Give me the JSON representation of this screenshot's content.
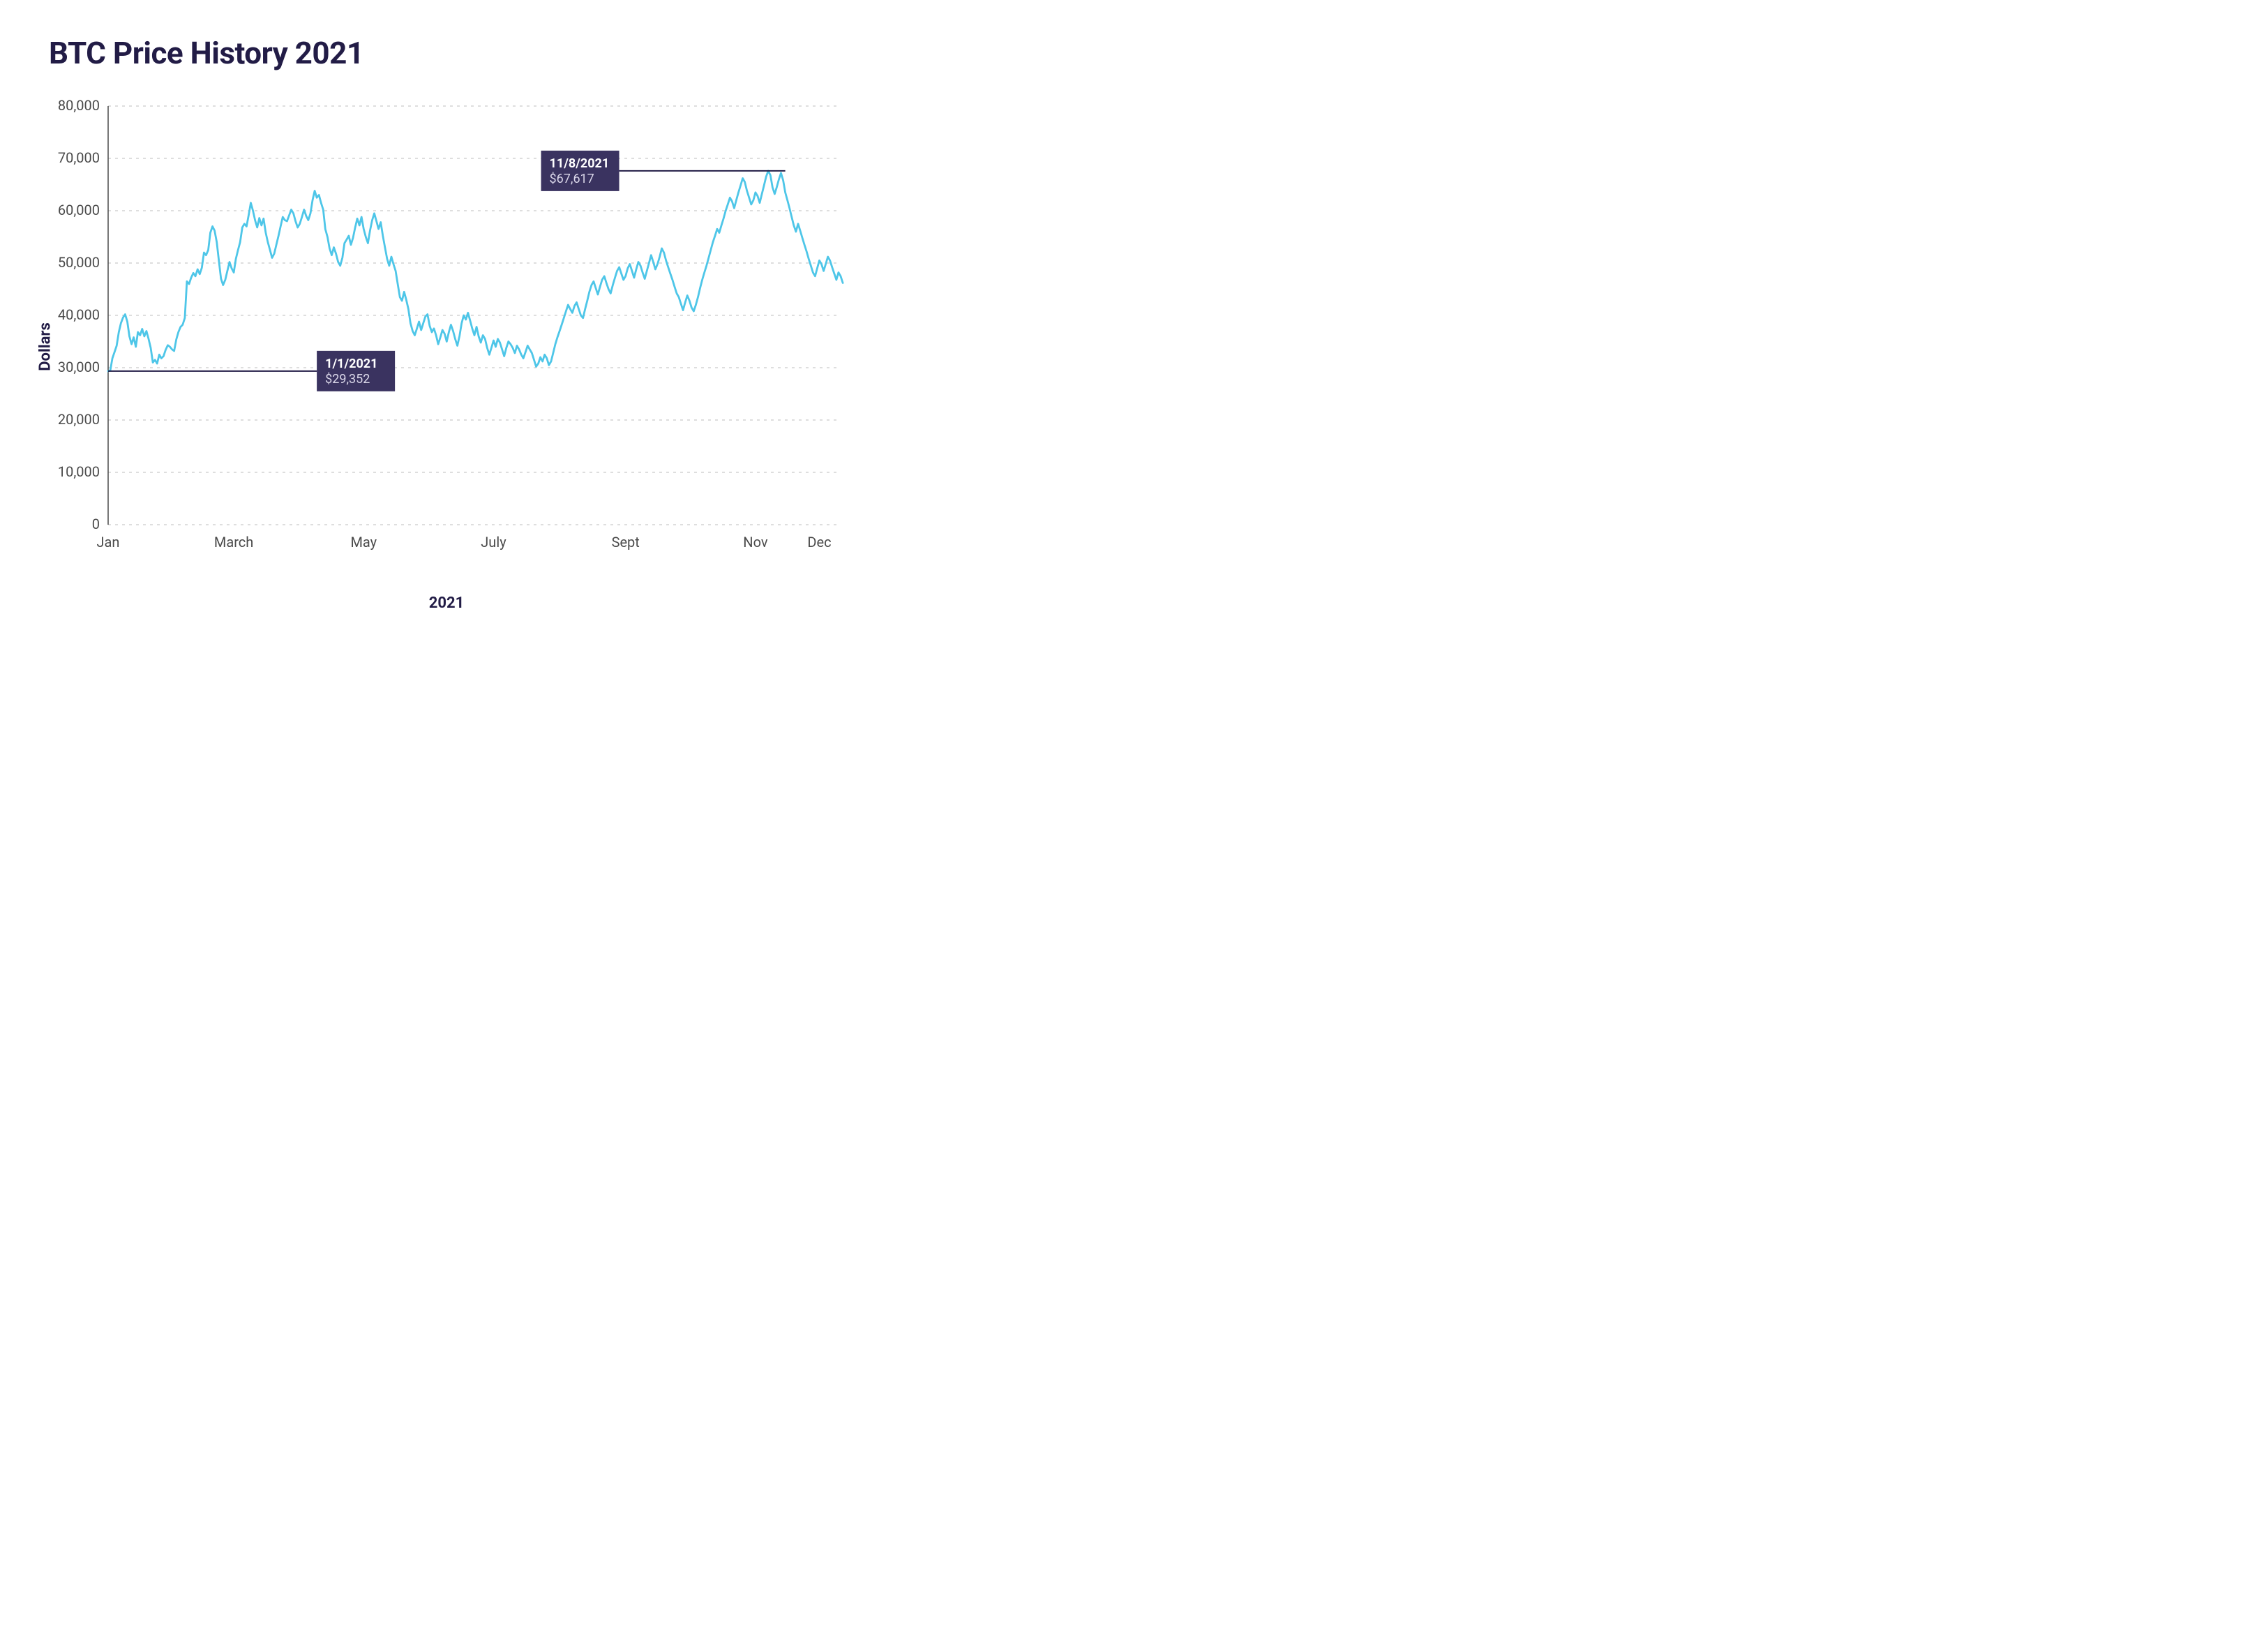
{
  "title": "BTC Price History 2021",
  "chart": {
    "type": "line",
    "ylabel": "Dollars",
    "xlabel": "2021",
    "ylim": [
      0,
      80000
    ],
    "ytick_step": 10000,
    "ytick_labels": [
      "0",
      "10,000",
      "20,000",
      "30,000",
      "40,000",
      "50,000",
      "60,000",
      "70,000",
      "80,000"
    ],
    "xticks": [
      {
        "pos": 0,
        "label": "Jan"
      },
      {
        "pos": 59,
        "label": "March"
      },
      {
        "pos": 120,
        "label": "May"
      },
      {
        "pos": 181,
        "label": "July"
      },
      {
        "pos": 243,
        "label": "Sept"
      },
      {
        "pos": 304,
        "label": "Nov"
      },
      {
        "pos": 334,
        "label": "Dec"
      }
    ],
    "x_range_days": 344,
    "line_color": "#4ec6e8",
    "line_width": 2.8,
    "grid_color": "#c9c9c9",
    "axis_color": "#4a4a4a",
    "background_color": "#ffffff",
    "callouts": [
      {
        "date_label": "1/1/2021",
        "price_label": "$29,352",
        "y_value": 29352,
        "line_from_day": 0,
        "line_to_day": 98,
        "box_side": "right"
      },
      {
        "date_label": "11/8/2021",
        "price_label": "$67,617",
        "y_value": 67617,
        "line_from_day": 240,
        "line_to_day": 318,
        "box_side": "left"
      }
    ],
    "callout_box_fill": "#3a3360",
    "callout_date_color": "#ffffff",
    "callout_price_color": "#d9d6e8",
    "callout_line_color": "#221c46",
    "callout_box_w": 112,
    "callout_box_h": 58,
    "title_color": "#221c46",
    "title_fontsize": 44,
    "label_color": "#221c46",
    "label_fontsize": 22,
    "tick_fontsize": 20,
    "tick_color": "#4a4a4a",
    "data": [
      29352,
      29500,
      31800,
      33000,
      34200,
      36800,
      38500,
      39600,
      40200,
      38800,
      36000,
      34500,
      35800,
      34000,
      36800,
      36200,
      37400,
      36000,
      37000,
      35500,
      33800,
      31000,
      31500,
      30800,
      32500,
      31800,
      32200,
      33400,
      34300,
      34000,
      33500,
      33200,
      35400,
      36800,
      37800,
      38200,
      39500,
      46500,
      46000,
      47200,
      48100,
      47500,
      48800,
      47900,
      49100,
      52000,
      51500,
      52500,
      55800,
      57000,
      56200,
      54000,
      50500,
      47000,
      45800,
      46800,
      48500,
      50200,
      49000,
      48200,
      50800,
      52500,
      54000,
      56800,
      57500,
      57000,
      59200,
      61500,
      60000,
      58200,
      56800,
      58600,
      57200,
      58500,
      55800,
      54000,
      52500,
      51000,
      51800,
      53500,
      55200,
      57000,
      58800,
      58200,
      58000,
      59100,
      60200,
      59500,
      58000,
      56800,
      57500,
      58800,
      60200,
      59000,
      58200,
      59500,
      62000,
      63800,
      62500,
      63000,
      61500,
      60200,
      56500,
      55000,
      52800,
      51500,
      53000,
      51800,
      50200,
      49500,
      51000,
      53800,
      54500,
      55200,
      53500,
      54800,
      56800,
      58500,
      57200,
      58800,
      56500,
      55000,
      53800,
      56200,
      58200,
      59500,
      58000,
      56500,
      57800,
      55200,
      53000,
      50800,
      49500,
      51200,
      49800,
      48500,
      46000,
      43500,
      42800,
      44500,
      43000,
      41200,
      38500,
      37000,
      36200,
      37500,
      38800,
      37200,
      38500,
      39800,
      40200,
      38000,
      36800,
      37500,
      36200,
      34500,
      35800,
      37200,
      36500,
      35000,
      36800,
      38200,
      37000,
      35500,
      34200,
      36000,
      38500,
      40000,
      39200,
      40500,
      39000,
      37500,
      36200,
      37800,
      36000,
      34800,
      36200,
      35500,
      33800,
      32500,
      33800,
      35200,
      34000,
      35500,
      34800,
      33500,
      32200,
      33800,
      35000,
      34500,
      33800,
      32800,
      34200,
      33500,
      32500,
      31800,
      33000,
      34200,
      33500,
      32800,
      31500,
      30200,
      30800,
      32000,
      31200,
      32500,
      31800,
      30500,
      31200,
      32800,
      34500,
      35800,
      37000,
      38200,
      39500,
      40800,
      42000,
      41200,
      40500,
      41800,
      42500,
      41200,
      40000,
      39500,
      41200,
      42800,
      44500,
      45800,
      46500,
      45200,
      44000,
      45500,
      46800,
      47500,
      46200,
      45000,
      44200,
      45800,
      47200,
      48500,
      49200,
      48000,
      46800,
      47500,
      49000,
      49800,
      48500,
      47200,
      48800,
      50200,
      49500,
      48200,
      47000,
      48500,
      50000,
      51500,
      50200,
      48800,
      49800,
      51200,
      52800,
      52000,
      50500,
      49200,
      48000,
      46800,
      45500,
      44200,
      43500,
      42200,
      41000,
      42500,
      43800,
      42800,
      41500,
      40800,
      42000,
      43500,
      45200,
      46800,
      48200,
      49500,
      51000,
      52500,
      54000,
      55200,
      56500,
      55800,
      57200,
      58500,
      60000,
      61200,
      62500,
      61800,
      60500,
      62000,
      63500,
      64800,
      66200,
      65500,
      63800,
      62500,
      61200,
      62000,
      63500,
      62800,
      61500,
      63200,
      64800,
      66500,
      67617,
      66800,
      64500,
      63200,
      64500,
      66000,
      67200,
      65800,
      63500,
      62000,
      60500,
      58800,
      57200,
      56000,
      57500,
      56200,
      54800,
      53500,
      52200,
      50800,
      49500,
      48200,
      47500,
      49000,
      50500,
      49800,
      48500,
      49800,
      51200,
      50500,
      49200,
      48000,
      46800,
      48200,
      47500,
      46200
    ]
  }
}
